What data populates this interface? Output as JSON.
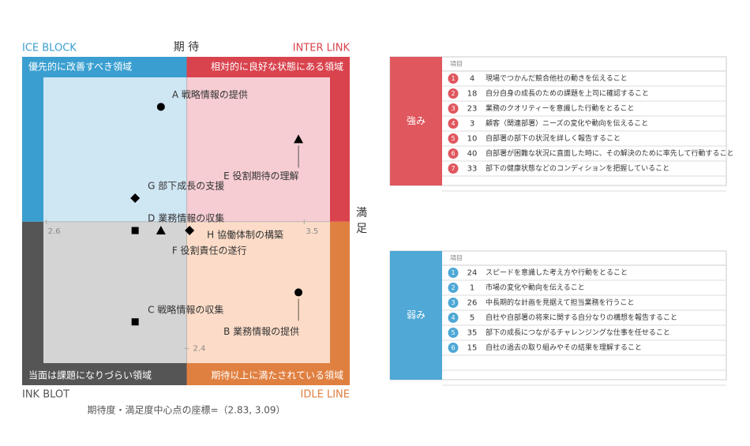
{
  "chart_data": {
    "type": "scatter",
    "y_label": "期 待",
    "x_label": "満 足",
    "caption": "期待度・満足度中心点の座標=（2.83, 3.09）",
    "center": {
      "x": 3.09,
      "y": 2.83
    },
    "xlim": [
      2.59,
      3.59
    ],
    "ylim": [
      2.35,
      3.32
    ],
    "xticks": [
      2.6,
      3.5
    ],
    "yticks": [
      2.4
    ],
    "quadrants": [
      {
        "corner": "ICE BLOCK",
        "label": "優先的に改善すべき領域",
        "color": "#3a9fd0",
        "fill": "#cfe6f3"
      },
      {
        "corner": "INTER LINK",
        "label": "相対的に良好な状態にある領域",
        "color": "#d9434e",
        "fill": "#f6cdd3"
      },
      {
        "corner": "INK BLOT",
        "label": "当面は課題になりづらい領域",
        "color": "#555555",
        "fill": "#d4d4d4"
      },
      {
        "corner": "IDLE LINE",
        "label": "期待以上に満たされている領域",
        "color": "#e08040",
        "fill": "#fcdcc8"
      }
    ],
    "points": [
      {
        "label": "A 戦略情報の提供",
        "x": 3.0,
        "y": 3.22,
        "marker": "circle"
      },
      {
        "label": "E 役割期待の理解",
        "x": 3.48,
        "y": 3.11,
        "marker": "triangle"
      },
      {
        "label": "G 部下成長の支援",
        "x": 2.91,
        "y": 2.91,
        "marker": "diamond"
      },
      {
        "label": "D 業務情報の収集",
        "x": 2.91,
        "y": 2.8,
        "marker": "square"
      },
      {
        "label": "F 役割責任の遂行",
        "x": 3.0,
        "y": 2.8,
        "marker": "triangle"
      },
      {
        "label": "H 協働体制の構築",
        "x": 3.1,
        "y": 2.8,
        "marker": "diamond"
      },
      {
        "label": "C 戦略情報の収集",
        "x": 2.91,
        "y": 2.49,
        "marker": "square"
      },
      {
        "label": "B 業務情報の提供",
        "x": 3.48,
        "y": 2.59,
        "marker": "circle"
      }
    ]
  },
  "strengths": {
    "title": "強み",
    "header": "項目",
    "color": "#e0575e",
    "rows": [
      {
        "rank": "1",
        "id": "4",
        "text": "現場でつかんだ競合他社の動きを伝えること"
      },
      {
        "rank": "2",
        "id": "18",
        "text": "自分自身の成長のための課題を上司に確認すること"
      },
      {
        "rank": "3",
        "id": "23",
        "text": "業務のクオリティーを意識した行動をとること"
      },
      {
        "rank": "4",
        "id": "3",
        "text": "顧客（関連部署）ニーズの変化や動向を伝えること"
      },
      {
        "rank": "5",
        "id": "10",
        "text": "自部署の部下の状況を詳しく報告すること"
      },
      {
        "rank": "6",
        "id": "40",
        "text": "自部署が困難な状況に直面した時に、その解決のために率先して行動すること"
      },
      {
        "rank": "7",
        "id": "33",
        "text": "部下の健康状態などのコンディションを把握していること"
      }
    ]
  },
  "weaknesses": {
    "title": "弱み",
    "header": "項目",
    "color": "#4fa8d5",
    "rows": [
      {
        "rank": "1",
        "id": "24",
        "text": "スピードを意識した考え方や行動をとること"
      },
      {
        "rank": "2",
        "id": "1",
        "text": "市場の変化や動向を伝えること"
      },
      {
        "rank": "3",
        "id": "26",
        "text": "中長期的な計画を見据えて担当業務を行うこと"
      },
      {
        "rank": "4",
        "id": "5",
        "text": "自社や自部署の将来に関する自分なりの構想を報告すること"
      },
      {
        "rank": "5",
        "id": "35",
        "text": "部下の成長につながるチャレンジングな仕事を任せること"
      },
      {
        "rank": "6",
        "id": "15",
        "text": "自社の過去の取り組みやその結果を理解すること"
      }
    ]
  }
}
